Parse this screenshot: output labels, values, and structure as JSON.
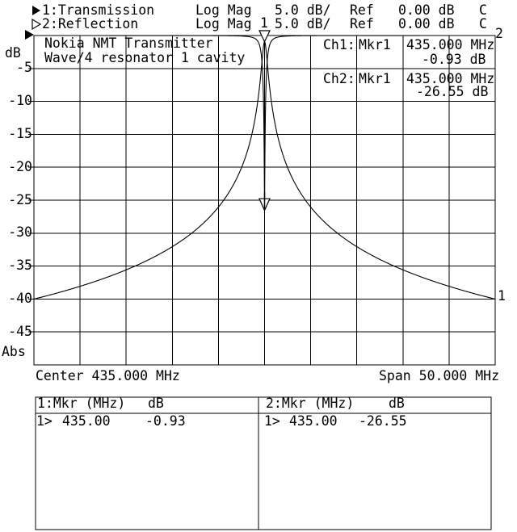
{
  "display": {
    "channels": [
      {
        "prefix": "1:",
        "name": "Transmission",
        "format": "Log Mag",
        "scale": "5.0 dB/",
        "ref_label": "Ref",
        "ref_value": "0.00 dB",
        "status": "C"
      },
      {
        "prefix": "2:",
        "name": "Reflection",
        "format": "Log Mag",
        "scale": "5.0 dB/",
        "ref_label": "Ref",
        "ref_value": "0.00 dB",
        "status": "C"
      }
    ],
    "annotation": {
      "line1": "Nokia NMT Transmitter",
      "line2": "Wave/4 resonator 1 cavity"
    },
    "y_axis": {
      "unit": "dB",
      "bottom_label": "Abs"
    },
    "x_axis": {
      "center_label": "Center 435.000 MHz",
      "span_label": "Span 50.000 MHz"
    },
    "readouts": [
      {
        "channel": "Ch1:",
        "marker": "Mkr1",
        "freq": "435.000 MHz",
        "value": "-0.93 dB"
      },
      {
        "channel": "Ch2:",
        "marker": "Mkr1",
        "freq": "435.000 MHz",
        "value": "-26.55 dB"
      }
    ],
    "trace_labels": {
      "trace1": "1",
      "trace2": "2",
      "marker1": "1"
    },
    "marker_tables": [
      {
        "header": "1:Mkr (MHz)",
        "unit": "dB",
        "rows": [
          {
            "sel": "1>",
            "freq": "435.00",
            "value": "-0.93"
          }
        ]
      },
      {
        "header": "2:Mkr (MHz)",
        "unit": "dB",
        "rows": [
          {
            "sel": "1>",
            "freq": "435.00",
            "value": "-26.55"
          }
        ]
      }
    ]
  },
  "chart_data": {
    "type": "line",
    "title": "Nokia NMT Transmitter Wave/4 resonator 1 cavity",
    "x": {
      "center_mhz": 435,
      "span_mhz": 50,
      "start_mhz": 410,
      "end_mhz": 460,
      "divisions": 10
    },
    "y": {
      "unit": "dB",
      "ref_db": 0,
      "db_per_div": 5,
      "min_db": -50,
      "max_db": 0,
      "divisions": 10,
      "ticks": [
        -5,
        -10,
        -15,
        -20,
        -25,
        -30,
        -35,
        -40,
        -45
      ]
    },
    "grid": true,
    "legend": "none",
    "series": [
      {
        "name": "Transmission",
        "channel": 1,
        "model": "lorentzian_peak_db",
        "peak_db": -0.93,
        "center_mhz": 435,
        "half_bw_mhz": 0.278,
        "points_mhz_db": [
          [
            410,
            -40.0
          ],
          [
            415,
            -38.1
          ],
          [
            420,
            -35.6
          ],
          [
            425,
            -32.1
          ],
          [
            430,
            -26.0
          ],
          [
            433,
            -18.2
          ],
          [
            434,
            -12.4
          ],
          [
            434.5,
            -7.2
          ],
          [
            435,
            -0.93
          ],
          [
            435.5,
            -7.2
          ],
          [
            436,
            -12.4
          ],
          [
            437,
            -18.2
          ],
          [
            440,
            -26.0
          ],
          [
            445,
            -32.1
          ],
          [
            450,
            -35.6
          ],
          [
            455,
            -38.1
          ],
          [
            460,
            -40.0
          ]
        ]
      },
      {
        "name": "Reflection",
        "channel": 2,
        "model": "reflection_dip_db",
        "floor_db": 0,
        "dip_db": -26.55,
        "center_mhz": 435,
        "half_width_mhz": 0.347,
        "points_mhz_db": [
          [
            410,
            0
          ],
          [
            425,
            -0.01
          ],
          [
            430,
            -0.02
          ],
          [
            433,
            -0.13
          ],
          [
            434,
            -0.49
          ],
          [
            434.65,
            -3.0
          ],
          [
            435,
            -26.55
          ],
          [
            435.35,
            -3.0
          ],
          [
            436,
            -0.49
          ],
          [
            437,
            -0.13
          ],
          [
            440,
            -0.02
          ],
          [
            445,
            -0.01
          ],
          [
            460,
            0
          ]
        ]
      }
    ],
    "markers": [
      {
        "id": 1,
        "trace": 1,
        "mhz": 435,
        "db": -0.93
      },
      {
        "id": 1,
        "trace": 2,
        "mhz": 435,
        "db": -26.55
      }
    ]
  },
  "colors": {
    "background": "#ffffff",
    "foreground": "#000000"
  }
}
